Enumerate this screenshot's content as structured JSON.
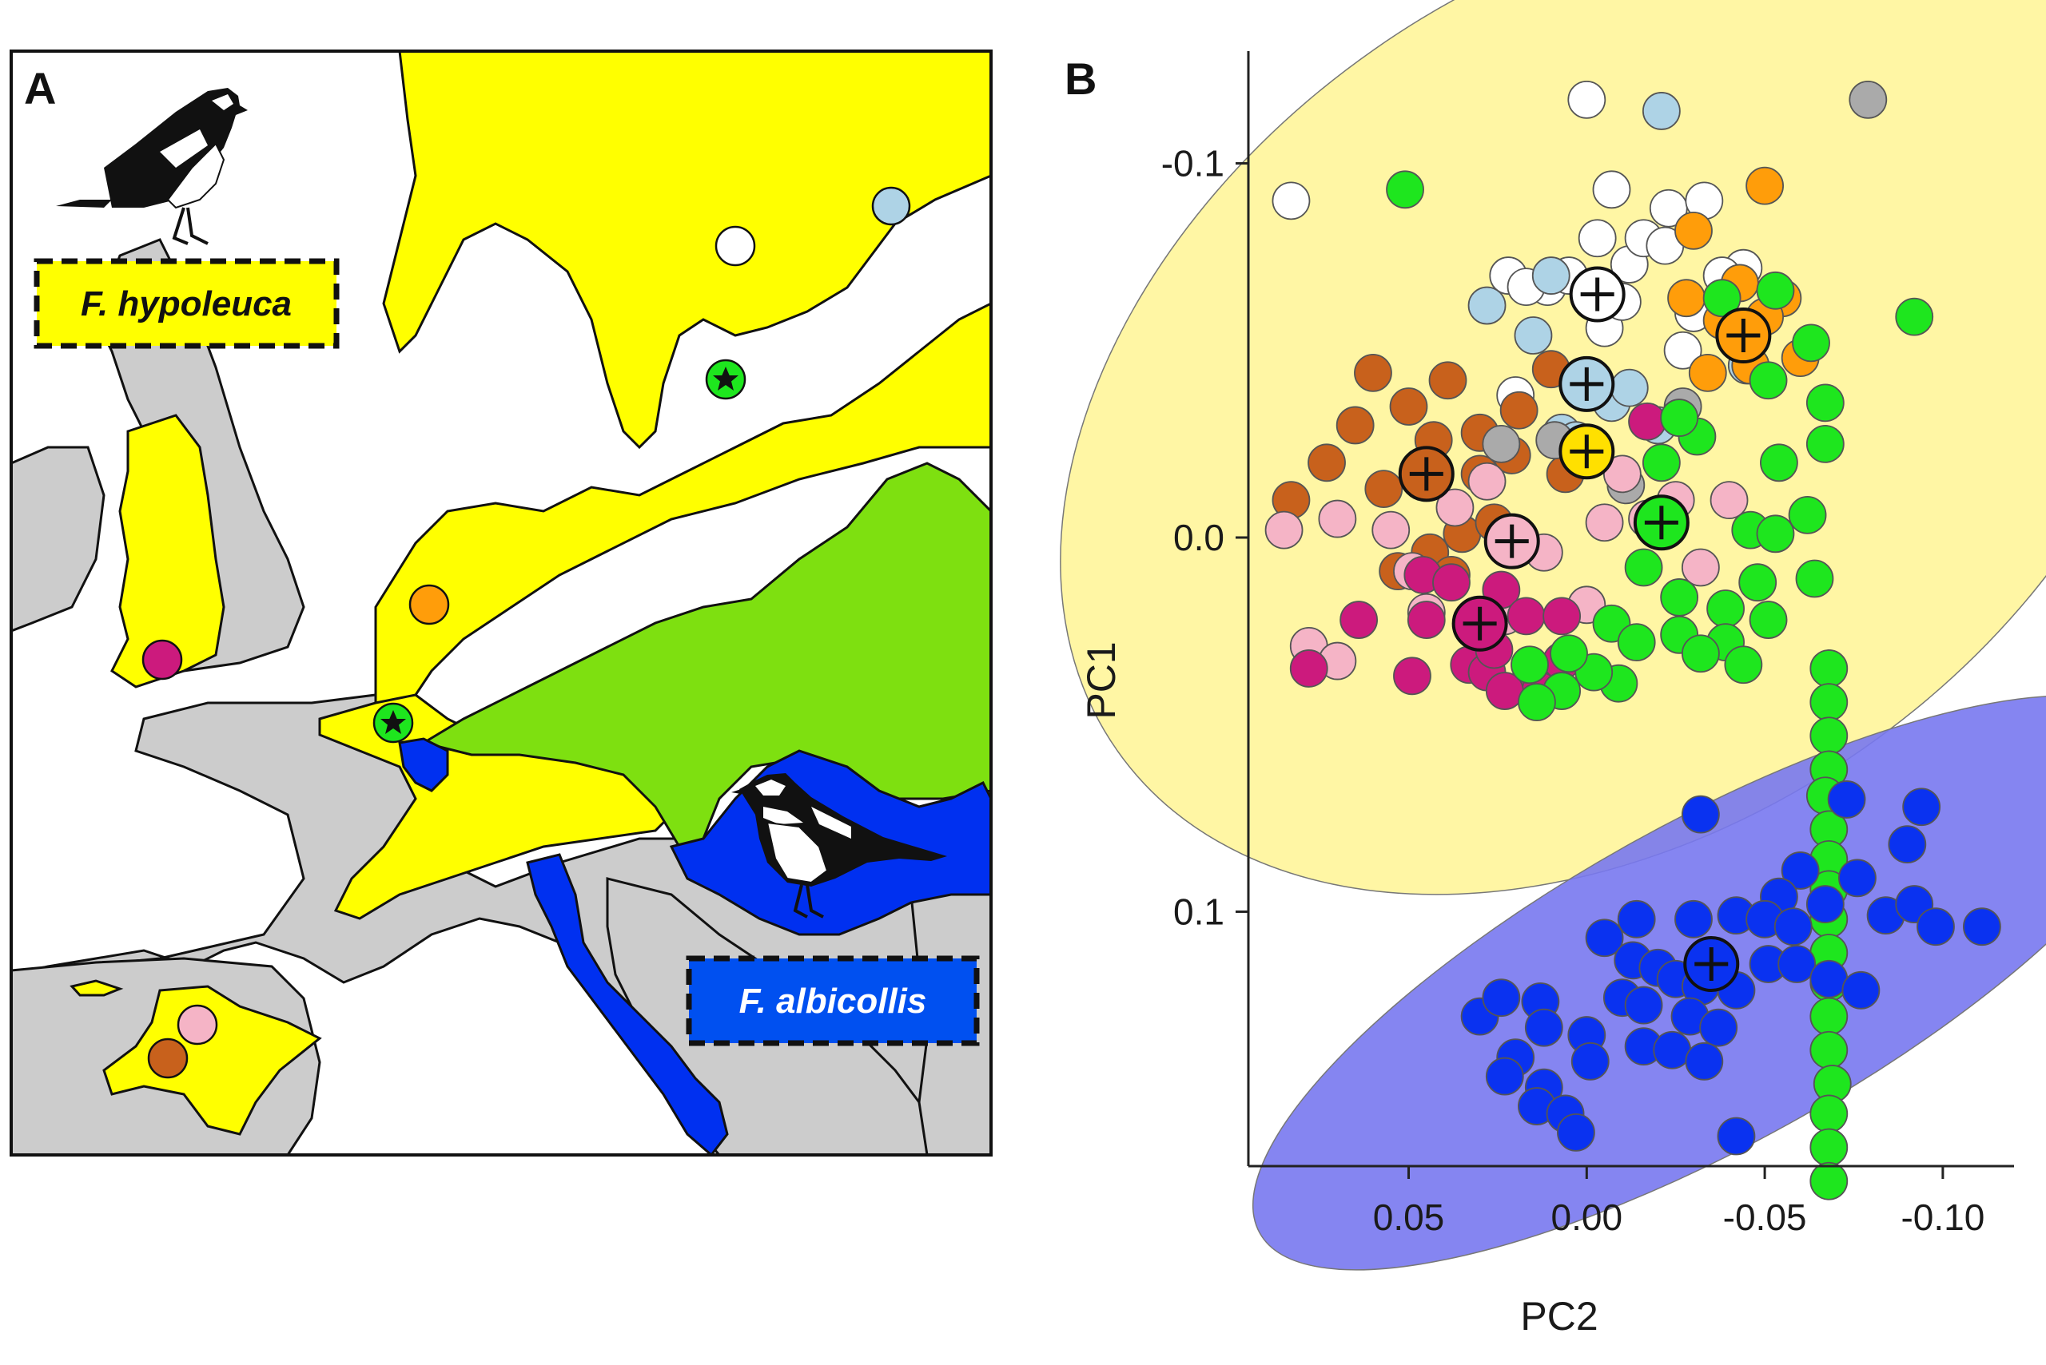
{
  "panel_a": {
    "letter": "A",
    "species_1": "F. hypoleuca",
    "species_2": "F. albicollis",
    "colors": {
      "yellow": "#ffff00",
      "green": "#7ee010",
      "blue": "#0030f0",
      "land": "#cccccc",
      "sea": "#ffffff"
    },
    "icons": [
      "pied-flycatcher-bird-icon",
      "collared-flycatcher-bird-icon",
      "star-marker-icon"
    ]
  },
  "panel_b": {
    "letter": "B"
  },
  "chart_data": {
    "type": "scatter",
    "title": "",
    "xlabel": "PC2",
    "ylabel": "PC1",
    "xlim": [
      0.095,
      -0.12
    ],
    "ylim": [
      -0.13,
      0.168
    ],
    "x_reversed": true,
    "y_reversed": true,
    "x_ticks": [
      0.05,
      0.0,
      -0.05,
      -0.1
    ],
    "x_tick_labels": [
      "0.05",
      "0.00",
      "-0.05",
      "-0.10"
    ],
    "y_ticks": [
      -0.1,
      0.0,
      0.1
    ],
    "y_tick_labels": [
      "-0.1",
      "0.0",
      "0.1"
    ],
    "grid": false,
    "ellipses": [
      {
        "color": "#fff59a",
        "cx": -0.009,
        "cy": -0.037,
        "rx": 0.172,
        "ry": 0.114,
        "angle": -35
      },
      {
        "color": "#7878f0",
        "cx": -0.035,
        "cy": 0.119,
        "rx": 0.145,
        "ry": 0.043,
        "angle": -29
      }
    ],
    "series": [
      {
        "color": "#ffffff",
        "centroid": [
          -0.003,
          -0.065
        ],
        "points": [
          [
            0.083,
            -0.09
          ],
          [
            -0.0,
            -0.117
          ],
          [
            -0.007,
            -0.093
          ],
          [
            -0.012,
            -0.073
          ],
          [
            -0.016,
            -0.08
          ],
          [
            -0.023,
            -0.088
          ],
          [
            -0.003,
            -0.08
          ],
          [
            -0.033,
            -0.09
          ],
          [
            -0.044,
            -0.072
          ],
          [
            0.022,
            -0.07
          ],
          [
            -0.005,
            -0.056
          ],
          [
            -0.01,
            -0.063
          ],
          [
            -0.022,
            -0.078
          ],
          [
            0.011,
            -0.067
          ],
          [
            -0.03,
            -0.06
          ],
          [
            0.02,
            -0.038
          ],
          [
            -0.027,
            -0.05
          ],
          [
            -0.038,
            -0.07
          ],
          [
            0.017,
            -0.067
          ],
          [
            0.005,
            -0.07
          ]
        ]
      },
      {
        "color": "#aed3e6",
        "centroid": [
          -0.0,
          -0.041
        ],
        "points": [
          [
            -0.021,
            -0.114
          ],
          [
            0.028,
            -0.062
          ],
          [
            0.015,
            -0.054
          ],
          [
            -0.007,
            -0.036
          ],
          [
            0.007,
            -0.028
          ],
          [
            -0.012,
            -0.04
          ],
          [
            -0.045,
            -0.046
          ],
          [
            0.01,
            -0.07
          ],
          [
            -0.02,
            -0.03
          ],
          [
            0.003,
            -0.026
          ]
        ]
      },
      {
        "color": "#ff9d0a",
        "centroid": [
          -0.044,
          -0.054
        ],
        "points": [
          [
            -0.05,
            -0.094
          ],
          [
            -0.03,
            -0.082
          ],
          [
            -0.038,
            -0.058
          ],
          [
            -0.055,
            -0.064
          ],
          [
            -0.046,
            -0.046
          ],
          [
            -0.028,
            -0.064
          ],
          [
            -0.034,
            -0.044
          ],
          [
            -0.06,
            -0.048
          ],
          [
            -0.043,
            -0.068
          ],
          [
            -0.05,
            -0.059
          ]
        ]
      },
      {
        "color": "#c8611c",
        "centroid": [
          0.045,
          -0.017
        ],
        "points": [
          [
            0.083,
            -0.01
          ],
          [
            0.065,
            -0.03
          ],
          [
            0.057,
            -0.013
          ],
          [
            0.05,
            -0.035
          ],
          [
            0.03,
            -0.028
          ],
          [
            0.039,
            -0.042
          ],
          [
            0.03,
            -0.017
          ],
          [
            0.019,
            -0.034
          ],
          [
            0.006,
            -0.017
          ],
          [
            0.073,
            -0.02
          ],
          [
            0.06,
            -0.044
          ],
          [
            0.043,
            -0.026
          ],
          [
            0.035,
            -0.001
          ],
          [
            0.053,
            0.009
          ],
          [
            0.021,
            -0.022
          ],
          [
            0.01,
            -0.045
          ],
          [
            0.044,
            0.004
          ],
          [
            0.038,
            0.01
          ],
          [
            0.026,
            -0.004
          ]
        ]
      },
      {
        "color": "#aaaaaa",
        "centroid": null,
        "points": [
          [
            -0.079,
            -0.117
          ],
          [
            -0.027,
            -0.035
          ],
          [
            0.024,
            -0.025
          ],
          [
            0.009,
            -0.026
          ],
          [
            -0.011,
            -0.014
          ]
        ]
      },
      {
        "color": "#ffe000",
        "centroid": [
          -0.0,
          -0.023
        ],
        "points": []
      },
      {
        "color": "#f5b4c6",
        "centroid": [
          0.021,
          0.001
        ],
        "points": [
          [
            0.085,
            -0.002
          ],
          [
            0.07,
            -0.005
          ],
          [
            0.055,
            -0.002
          ],
          [
            0.049,
            0.009
          ],
          [
            0.045,
            0.02
          ],
          [
            0.037,
            -0.008
          ],
          [
            0.028,
            -0.015
          ],
          [
            0.023,
            0.021
          ],
          [
            0.012,
            0.004
          ],
          [
            0.0,
            0.018
          ],
          [
            -0.005,
            -0.004
          ],
          [
            -0.01,
            -0.017
          ],
          [
            -0.025,
            -0.01
          ],
          [
            -0.032,
            0.008
          ],
          [
            -0.04,
            -0.01
          ],
          [
            0.078,
            0.029
          ],
          [
            0.07,
            0.033
          ],
          [
            -0.017,
            -0.005
          ]
        ]
      },
      {
        "color": "#cc1a7d",
        "centroid": [
          0.03,
          0.023
        ],
        "points": [
          [
            -0.017,
            -0.031
          ],
          [
            0.046,
            0.01
          ],
          [
            0.038,
            0.012
          ],
          [
            0.024,
            0.014
          ],
          [
            0.017,
            0.021
          ],
          [
            0.007,
            0.021
          ],
          [
            0.064,
            0.022
          ],
          [
            0.045,
            0.022
          ],
          [
            0.033,
            0.034
          ],
          [
            0.028,
            0.036
          ],
          [
            0.015,
            0.036
          ],
          [
            0.013,
            0.041
          ],
          [
            0.023,
            0.041
          ],
          [
            0.007,
            0.033
          ],
          [
            0.078,
            0.035
          ],
          [
            0.049,
            0.037
          ],
          [
            0.026,
            0.03
          ]
        ]
      },
      {
        "color": "#1ee61e",
        "centroid": [
          -0.021,
          -0.004
        ],
        "points": [
          [
            0.051,
            -0.093
          ],
          [
            -0.092,
            -0.059
          ],
          [
            -0.067,
            -0.036
          ],
          [
            -0.063,
            -0.052
          ],
          [
            -0.053,
            -0.066
          ],
          [
            -0.038,
            -0.064
          ],
          [
            -0.051,
            -0.042
          ],
          [
            -0.067,
            -0.025
          ],
          [
            -0.054,
            -0.02
          ],
          [
            -0.046,
            -0.002
          ],
          [
            -0.062,
            -0.006
          ],
          [
            -0.031,
            -0.027
          ],
          [
            -0.026,
            -0.032
          ],
          [
            -0.021,
            -0.02
          ],
          [
            -0.016,
            0.008
          ],
          [
            -0.026,
            0.016
          ],
          [
            -0.039,
            0.019
          ],
          [
            -0.048,
            0.012
          ],
          [
            -0.053,
            -0.001
          ],
          [
            -0.064,
            0.011
          ],
          [
            -0.051,
            0.022
          ],
          [
            -0.039,
            0.028
          ],
          [
            -0.007,
            0.023
          ],
          [
            -0.014,
            0.028
          ],
          [
            -0.026,
            0.026
          ],
          [
            -0.032,
            0.031
          ],
          [
            -0.044,
            0.034
          ],
          [
            -0.009,
            0.039
          ],
          [
            -0.002,
            0.036
          ],
          [
            0.005,
            0.031
          ],
          [
            0.016,
            0.034
          ],
          [
            0.007,
            0.041
          ],
          [
            0.014,
            0.044
          ],
          [
            -0.068,
            0.035
          ],
          [
            -0.068,
            0.044
          ],
          [
            -0.068,
            0.053
          ],
          [
            -0.068,
            0.062
          ],
          [
            -0.067,
            0.069
          ],
          [
            -0.068,
            0.078
          ],
          [
            -0.068,
            0.086
          ],
          [
            -0.068,
            0.094
          ],
          [
            -0.068,
            0.102
          ],
          [
            -0.068,
            0.111
          ],
          [
            -0.068,
            0.119
          ],
          [
            -0.068,
            0.128
          ],
          [
            -0.068,
            0.137
          ],
          [
            -0.069,
            0.146
          ],
          [
            -0.068,
            0.154
          ],
          [
            -0.068,
            0.163
          ],
          [
            -0.068,
            0.172
          ]
        ]
      },
      {
        "color": "#0a32f0",
        "centroid": [
          -0.035,
          0.114
        ],
        "points": [
          [
            -0.073,
            0.07
          ],
          [
            -0.094,
            0.072
          ],
          [
            -0.032,
            0.074
          ],
          [
            -0.09,
            0.082
          ],
          [
            -0.06,
            0.089
          ],
          [
            -0.054,
            0.096
          ],
          [
            -0.067,
            0.098
          ],
          [
            -0.076,
            0.091
          ],
          [
            -0.042,
            0.101
          ],
          [
            -0.05,
            0.102
          ],
          [
            -0.058,
            0.104
          ],
          [
            -0.084,
            0.101
          ],
          [
            -0.092,
            0.098
          ],
          [
            -0.098,
            0.104
          ],
          [
            -0.111,
            0.104
          ],
          [
            -0.03,
            0.102
          ],
          [
            -0.014,
            0.102
          ],
          [
            -0.005,
            0.107
          ],
          [
            -0.013,
            0.113
          ],
          [
            -0.02,
            0.115
          ],
          [
            -0.025,
            0.118
          ],
          [
            -0.032,
            0.12
          ],
          [
            -0.042,
            0.121
          ],
          [
            -0.051,
            0.114
          ],
          [
            -0.059,
            0.114
          ],
          [
            -0.068,
            0.118
          ],
          [
            -0.077,
            0.121
          ],
          [
            -0.01,
            0.123
          ],
          [
            -0.016,
            0.125
          ],
          [
            -0.029,
            0.128
          ],
          [
            -0.037,
            0.131
          ],
          [
            0.03,
            0.128
          ],
          [
            0.024,
            0.123
          ],
          [
            0.013,
            0.124
          ],
          [
            0.012,
            0.131
          ],
          [
            0.0,
            0.133
          ],
          [
            -0.001,
            0.14
          ],
          [
            -0.016,
            0.136
          ],
          [
            -0.024,
            0.137
          ],
          [
            -0.033,
            0.14
          ],
          [
            0.02,
            0.139
          ],
          [
            0.023,
            0.144
          ],
          [
            0.012,
            0.147
          ],
          [
            0.014,
            0.152
          ],
          [
            0.006,
            0.154
          ],
          [
            0.003,
            0.159
          ],
          [
            -0.042,
            0.16
          ]
        ]
      }
    ]
  }
}
